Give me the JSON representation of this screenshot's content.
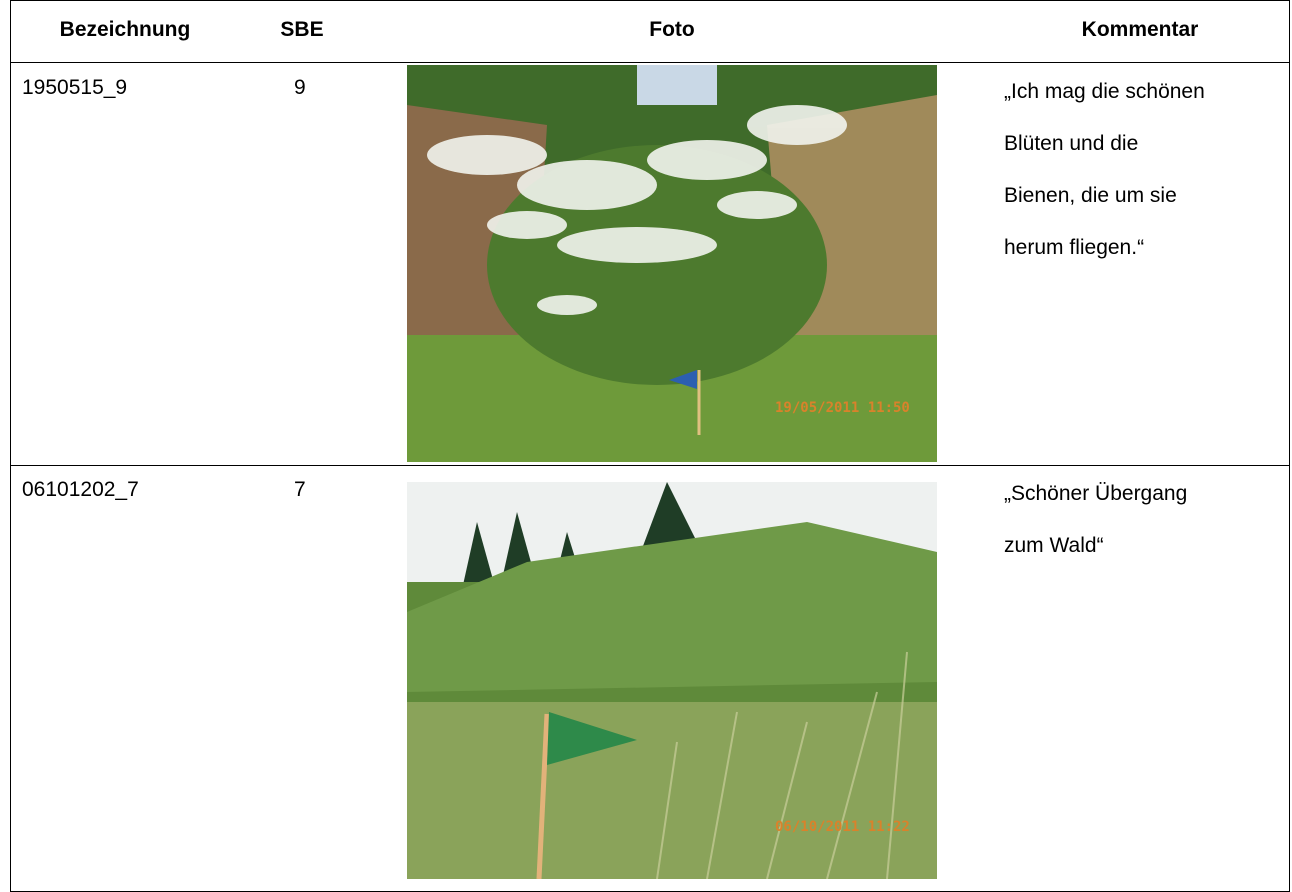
{
  "table": {
    "header": [
      "Bezeichnung",
      "SBE",
      "Foto",
      "Kommentar"
    ],
    "rows": [
      {
        "bezeichnung": "1950515_9",
        "sbe": 9,
        "photo_timestamp": "19/05/2011 11:50",
        "comment": [
          "„Ich mag die schönen",
          "Blüten und die",
          "Bienen, die um sie",
          "herum fliegen.“"
        ]
      },
      {
        "bezeichnung": "06101202_7",
        "sbe": 7,
        "photo_timestamp": "06/10/2011 11:22",
        "comment": [
          "„Schöner Übergang",
          "zum Wald“"
        ]
      }
    ]
  }
}
